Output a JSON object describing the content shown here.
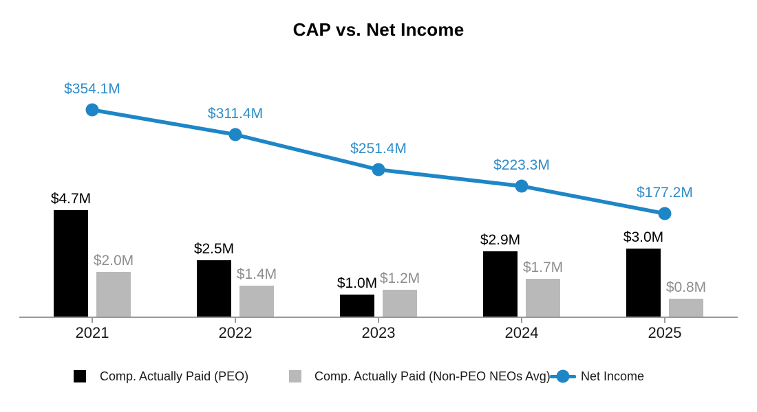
{
  "chart_data": {
    "type": "combo",
    "title": "CAP vs. Net Income",
    "categories": [
      "2021",
      "2022",
      "2023",
      "2024",
      "2025"
    ],
    "series": [
      {
        "name": "Comp. Actually Paid (PEO)",
        "key": "cap-peo",
        "type": "bar",
        "color": "#000000",
        "label_color": "#000000",
        "unit": "$M",
        "values": [
          4.7,
          2.5,
          1.0,
          2.9,
          3.0
        ],
        "labels": [
          "$4.7M",
          "$2.5M",
          "$1.0M",
          "$2.9M",
          "$3.0M"
        ]
      },
      {
        "name": "Comp. Actually Paid (Non-PEO NEOs Avg)",
        "key": "cap-non-peo",
        "type": "bar",
        "color": "#B9B9B9",
        "label_color": "#8E8E8E",
        "unit": "$M",
        "values": [
          2.0,
          1.4,
          1.2,
          1.7,
          0.8
        ],
        "labels": [
          "$2.0M",
          "$1.4M",
          "$1.2M",
          "$1.7M",
          "$0.8M"
        ]
      },
      {
        "name": "Net Income",
        "key": "net-income",
        "type": "line",
        "color": "#1E86C6",
        "label_color": "#2E8CC8",
        "unit": "$M",
        "values": [
          354.1,
          311.4,
          251.4,
          223.3,
          177.2
        ],
        "labels": [
          "$354.1M",
          "$311.4M",
          "$251.4M",
          "$223.3M",
          "$177.2M"
        ]
      }
    ],
    "axes": {
      "x_tick_labels": [
        "2021",
        "2022",
        "2023",
        "2024",
        "2025"
      ],
      "y_axis_visible": false,
      "gridlines": false,
      "axis_color": "#999999",
      "tick_label_color": "#1A1A1A"
    },
    "legend_position": "bottom"
  }
}
